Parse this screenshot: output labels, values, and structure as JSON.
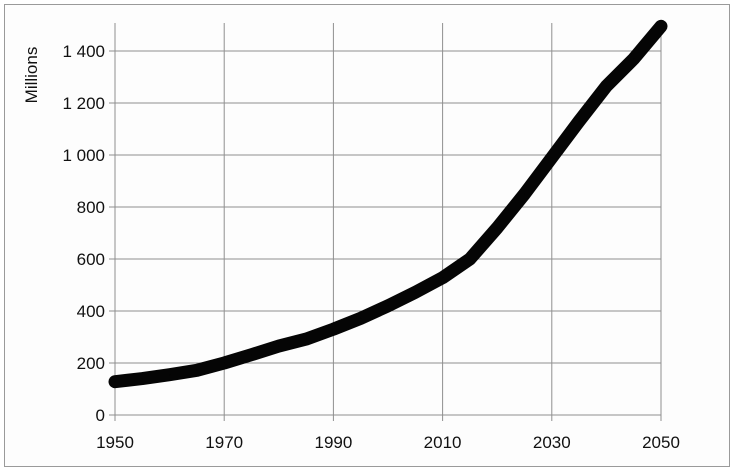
{
  "chart_data": {
    "type": "line",
    "title": "",
    "xlabel": "",
    "ylabel": "Millions",
    "xlim": [
      1950,
      2050
    ],
    "ylim": [
      0,
      1500
    ],
    "grid": true,
    "x_ticks": [
      1950,
      1970,
      1990,
      2010,
      2030,
      2050
    ],
    "x_tick_labels": [
      "1950",
      "1970",
      "1990",
      "2010",
      "2030",
      "2050"
    ],
    "y_ticks": [
      0,
      200,
      400,
      600,
      800,
      1000,
      1200,
      1400
    ],
    "y_tick_labels": [
      "0",
      "200",
      "400",
      "600",
      "800",
      "1 000",
      "1 200",
      "1 400"
    ],
    "series": [
      {
        "color": "#050505",
        "x": [
          1950,
          1955,
          1960,
          1965,
          1970,
          1975,
          1980,
          1985,
          1990,
          1995,
          2000,
          2005,
          2010,
          2015,
          2020,
          2025,
          2030,
          2035,
          2040,
          2045,
          2050
        ],
        "y": [
          128,
          140,
          155,
          172,
          200,
          232,
          265,
          292,
          330,
          372,
          420,
          472,
          528,
          600,
          720,
          850,
          990,
          1130,
          1265,
          1370,
          1495
        ]
      }
    ]
  }
}
